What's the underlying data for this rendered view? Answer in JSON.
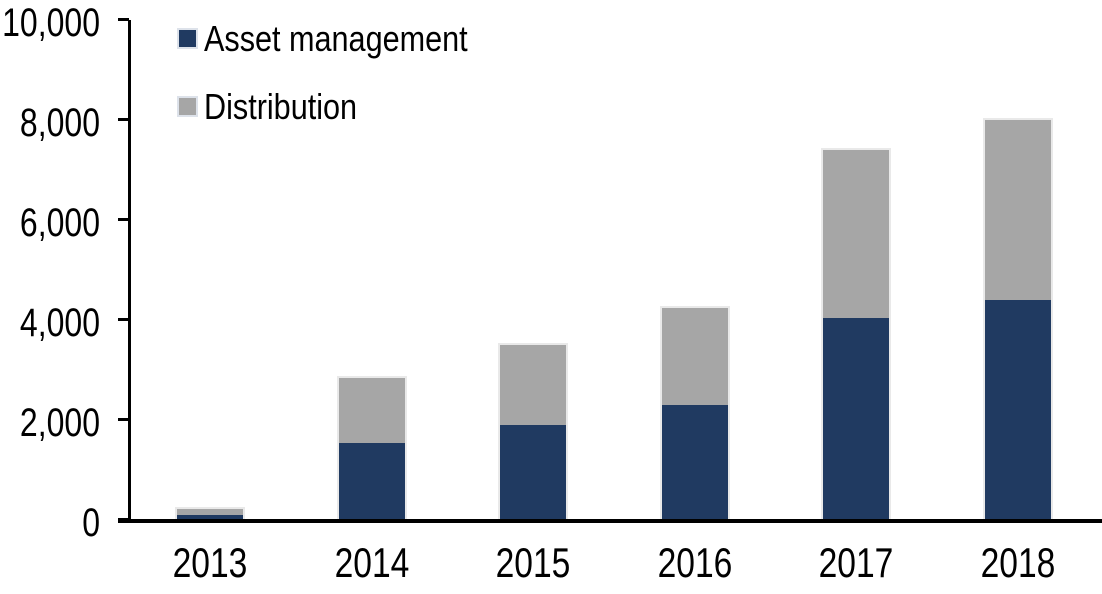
{
  "chart_data": {
    "type": "bar",
    "stacked": true,
    "title": "",
    "xlabel": "",
    "ylabel": "",
    "categories": [
      "2013",
      "2014",
      "2015",
      "2016",
      "2017",
      "2018"
    ],
    "series": [
      {
        "name": "Asset management",
        "color": "#203a61",
        "values": [
          100,
          1550,
          1900,
          2300,
          4050,
          4400
        ]
      },
      {
        "name": "Distribution",
        "color": "#a6a6a6",
        "values": [
          120,
          1300,
          1600,
          1950,
          3350,
          3600
        ]
      }
    ],
    "totals": [
      220,
      2850,
      3500,
      4250,
      7400,
      8000
    ],
    "ylim": [
      0,
      10000
    ],
    "ytick_step": 2000,
    "ytick_labels": [
      "0",
      "2,000",
      "4,000",
      "6,000",
      "8,000",
      "10,000"
    ],
    "grid": false,
    "legend_position": "top-left",
    "axis_color": "#000000",
    "text_color": "#000000",
    "background": "#ffffff"
  }
}
